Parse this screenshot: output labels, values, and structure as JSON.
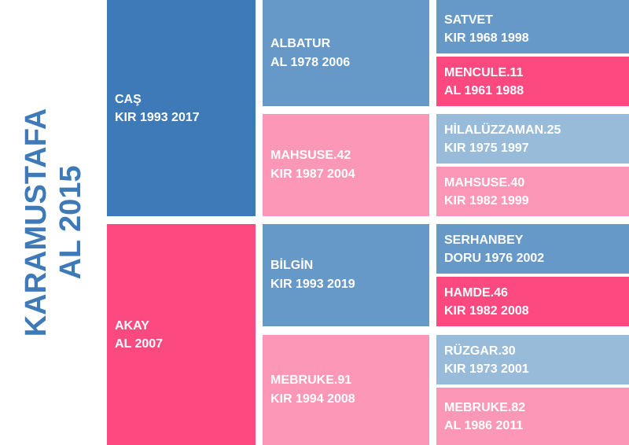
{
  "title": {
    "line1": "KARAMUSTAFA",
    "line2": "AL 2015"
  },
  "colors": {
    "male_dark": "#3f7ab8",
    "male_mid": "#6699c8",
    "male_light": "#99bbda",
    "female_dark": "#fc4a80",
    "female_mid": "#f97fa5",
    "female_light": "#fd97b7"
  },
  "sire": {
    "name": "CAŞ",
    "info": "KIR 1993 2017"
  },
  "dam": {
    "name": "AKAY",
    "info": "AL 2007"
  },
  "sire_sire": {
    "name": "ALBATUR",
    "info": "AL 1978 2006"
  },
  "sire_dam": {
    "name": "MAHSUSE.42",
    "info": "KIR 1987 2004"
  },
  "dam_sire": {
    "name": "BİLGİN",
    "info": "KIR 1993 2019"
  },
  "dam_dam": {
    "name": "MEBRUKE.91",
    "info": "KIR 1994 2008"
  },
  "ss_sire": {
    "name": "SATVET",
    "info": "KIR 1968 1998"
  },
  "ss_dam": {
    "name": "MENCULE.11",
    "info": "AL 1961 1988"
  },
  "sd_sire": {
    "name": "HİLALÜZZAMAN.25",
    "info": "KIR 1975 1997"
  },
  "sd_dam": {
    "name": "MAHSUSE.40",
    "info": "KIR 1982 1999"
  },
  "ds_sire": {
    "name": "SERHANBEY",
    "info": "DORU 1976 2002"
  },
  "ds_dam": {
    "name": "HAMDE.46",
    "info": "KIR 1982 2008"
  },
  "dd_sire": {
    "name": "RÜZGAR.30",
    "info": "KIR 1973 2001"
  },
  "dd_dam": {
    "name": "MEBRUKE.82",
    "info": "AL 1986 2011"
  }
}
